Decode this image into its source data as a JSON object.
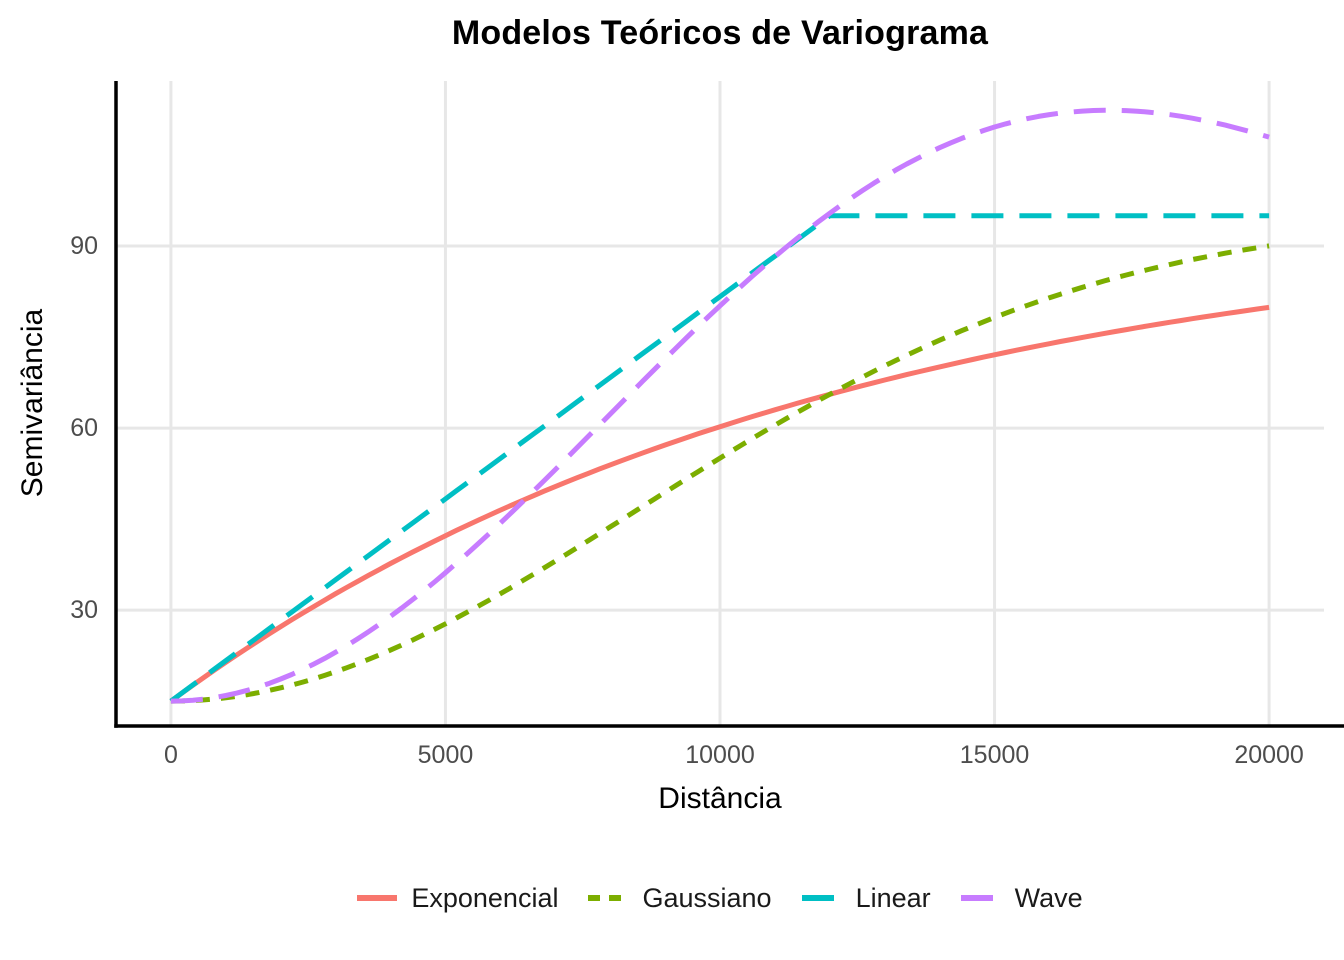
{
  "chart_data": {
    "type": "line",
    "title": "Modelos Teóricos de Variograma",
    "xlabel": "Distância",
    "ylabel": "Semivariância",
    "x_ticks": [
      0,
      5000,
      10000,
      15000,
      20000
    ],
    "y_ticks": [
      30,
      60,
      90
    ],
    "xlim": [
      -1000,
      21000
    ],
    "ylim": [
      10.9,
      117.2
    ],
    "grid": "major-only",
    "legend_position": "bottom",
    "colors": {
      "background": "#FFFFFF",
      "grid": "#E7E7E7",
      "axis_line": "#000000",
      "tick_label": "#4D4D4D",
      "text": "#000000"
    },
    "sample_x": [
      0,
      2500,
      5000,
      7500,
      10000,
      12500,
      15000,
      17500,
      20000
    ],
    "series": [
      {
        "name": "Exponencial",
        "color": "#F8766D",
        "linetype": "solid",
        "model": {
          "type": "exponential",
          "nugget": 15,
          "sill": 80,
          "range": 12000
        },
        "values": [
          15,
          30.0,
          42.3,
          52.2,
          60.2,
          66.8,
          72.1,
          76.4,
          79.9
        ]
      },
      {
        "name": "Gaussiano",
        "color": "#7CAE00",
        "linetype": "dotted",
        "model": {
          "type": "gaussian",
          "nugget": 15,
          "sill": 80,
          "range": 12000
        },
        "values": [
          15,
          18.4,
          27.8,
          40.9,
          55.0,
          68.0,
          78.2,
          85.5,
          90.0
        ]
      },
      {
        "name": "Linear",
        "color": "#00BFC4",
        "linetype": "longdash",
        "model": {
          "type": "linear",
          "nugget": 15,
          "sill": 80,
          "range": 12000
        },
        "values": [
          15,
          31.7,
          48.3,
          65.0,
          81.7,
          95,
          95,
          95,
          95
        ]
      },
      {
        "name": "Wave",
        "color": "#C77CFF",
        "linetype": "longdash",
        "model": {
          "type": "wave",
          "nugget": 15,
          "sill": 80,
          "range": 3800
        },
        "values": [
          15,
          20.7,
          36.2,
          57.7,
          80.2,
          98.6,
          109.6,
          112.3,
          108.0
        ]
      }
    ]
  }
}
